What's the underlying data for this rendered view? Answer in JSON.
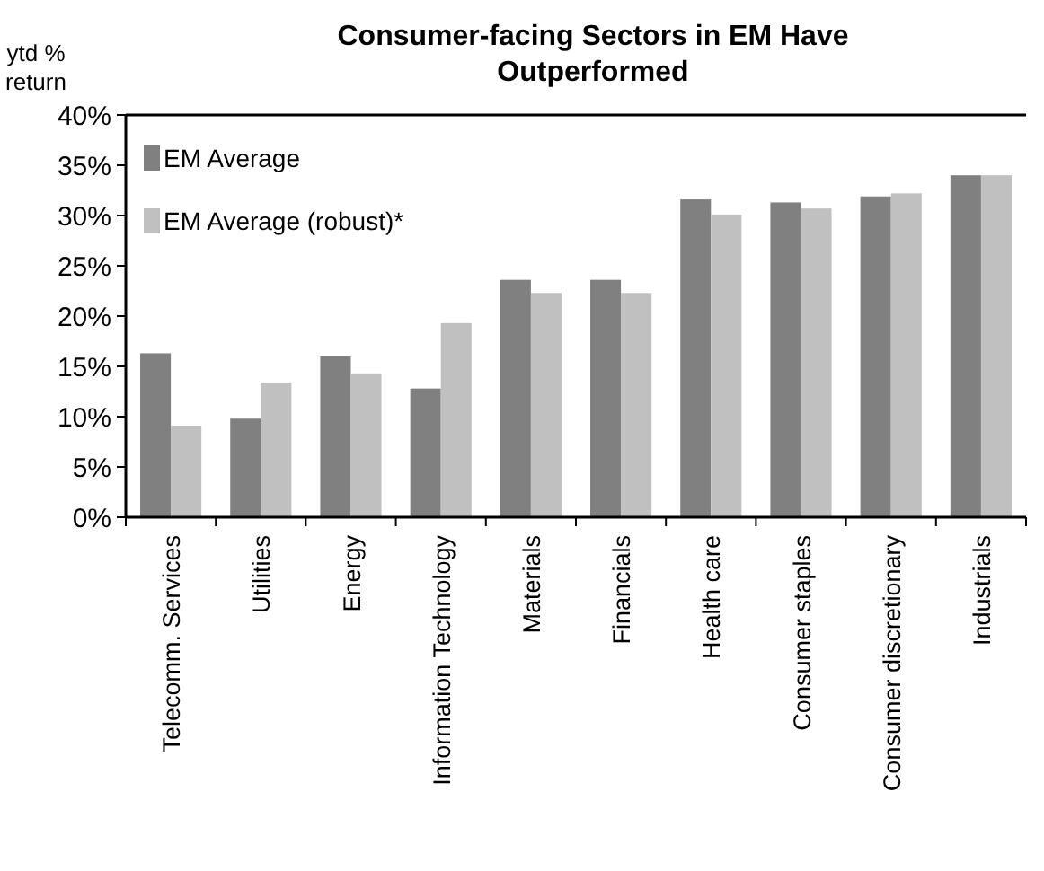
{
  "chart_data": {
    "type": "bar",
    "title": "Consumer-facing Sectors in EM Have Outperformed",
    "ylabel": "ytd % return",
    "categories": [
      "Telecomm. Services",
      "Utilities",
      "Energy",
      "Information Technology",
      "Materials",
      "Financials",
      "Health care",
      "Consumer staples",
      "Consumer discretionary",
      "Industrials"
    ],
    "series": [
      {
        "name": "EM Average",
        "color": "#808080",
        "values": [
          16.3,
          9.8,
          16.0,
          12.8,
          23.6,
          23.6,
          31.6,
          31.3,
          31.9,
          34.0
        ]
      },
      {
        "name": "EM Average (robust)*",
        "color": "#c0c0c0",
        "values": [
          9.1,
          13.4,
          14.3,
          19.3,
          22.3,
          22.3,
          30.1,
          30.7,
          32.2,
          34.0
        ]
      }
    ],
    "ylim": [
      0,
      40
    ],
    "yticks": [
      {
        "value": 0,
        "label": "0%"
      },
      {
        "value": 5,
        "label": "5%"
      },
      {
        "value": 10,
        "label": "10%"
      },
      {
        "value": 15,
        "label": "15%"
      },
      {
        "value": 20,
        "label": "20%"
      },
      {
        "value": 25,
        "label": "25%"
      },
      {
        "value": 30,
        "label": "30%"
      },
      {
        "value": 35,
        "label": "35%"
      },
      {
        "value": 40,
        "label": "40%"
      }
    ],
    "grid": false,
    "legend": "top left"
  }
}
